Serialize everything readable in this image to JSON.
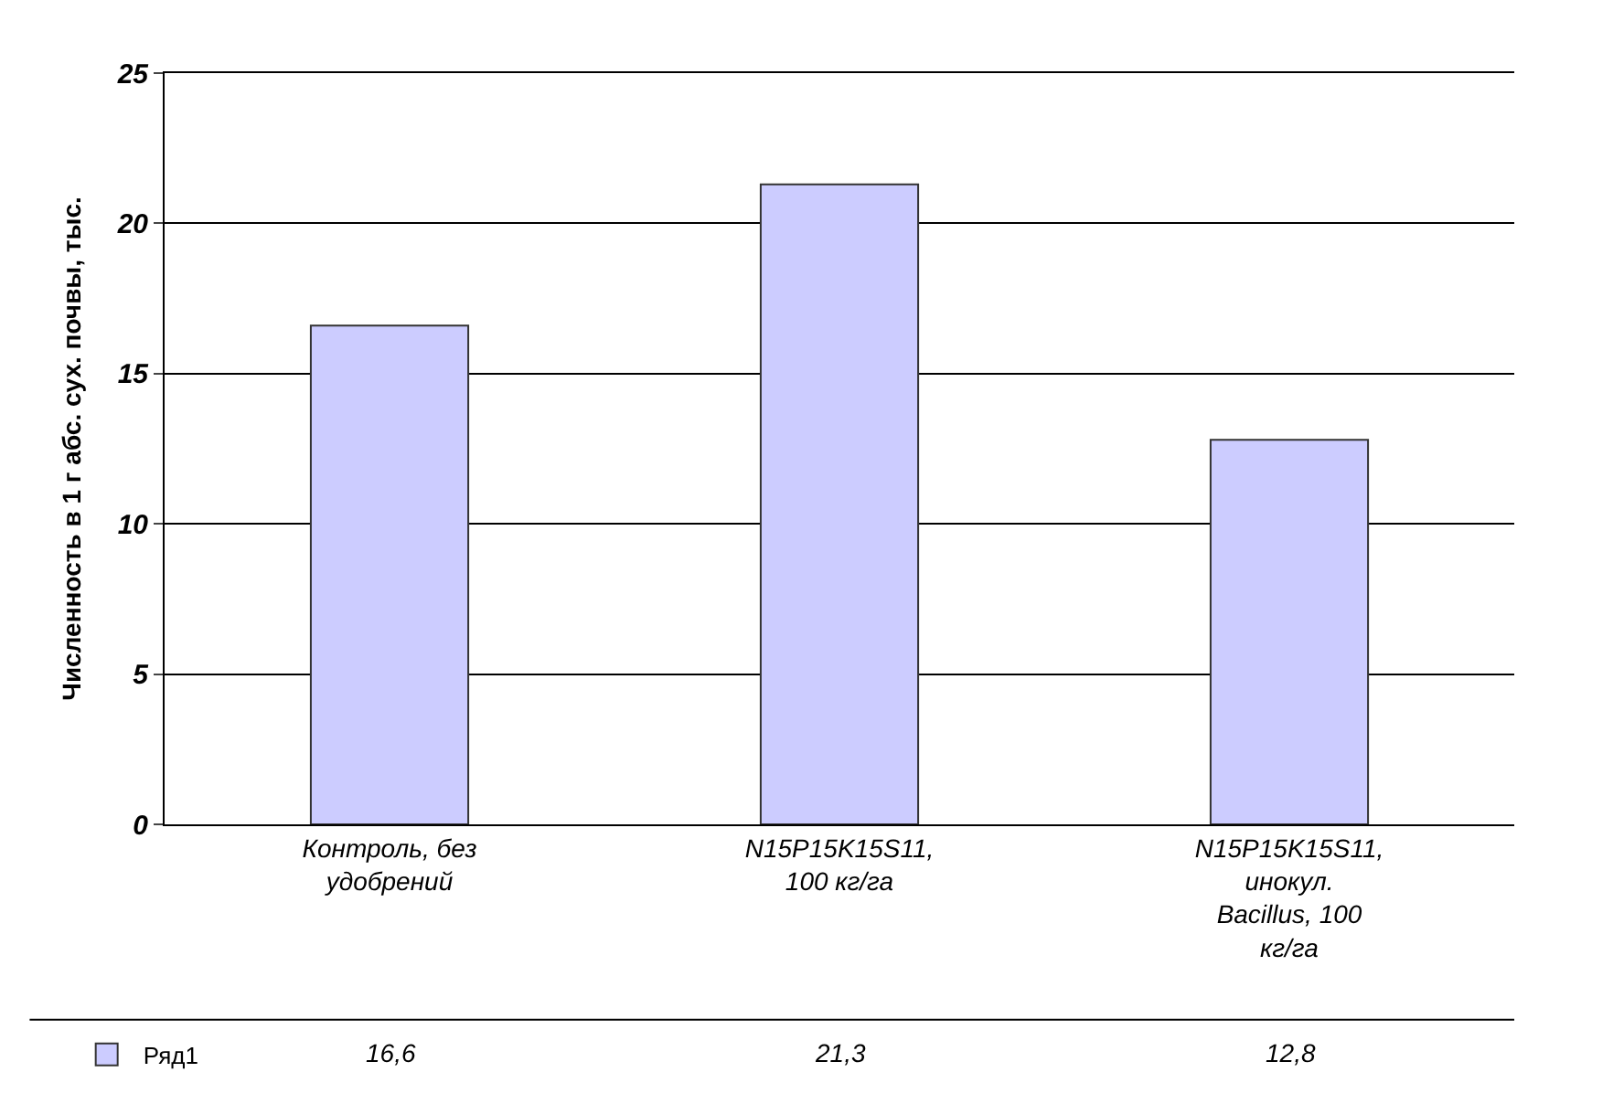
{
  "chart_data": {
    "type": "bar",
    "ylabel": "Численность в 1 г абс. сух. почвы, тыс.",
    "categories": [
      "Контроль, без удобрений",
      "N15P15K15S11, 100 кг/га",
      "N15P15K15S11, инокул. Bacillus, 100 кг/га"
    ],
    "series": [
      {
        "name": "Ряд1",
        "color": "#ccccff",
        "values": [
          16.6,
          21.3,
          12.8
        ],
        "value_labels": [
          "16,6",
          "21,3",
          "12,8"
        ]
      }
    ],
    "ylim": [
      0,
      25
    ],
    "yticks": [
      0,
      5,
      10,
      15,
      20,
      25
    ],
    "grid": "y",
    "legend": "bottom left"
  }
}
